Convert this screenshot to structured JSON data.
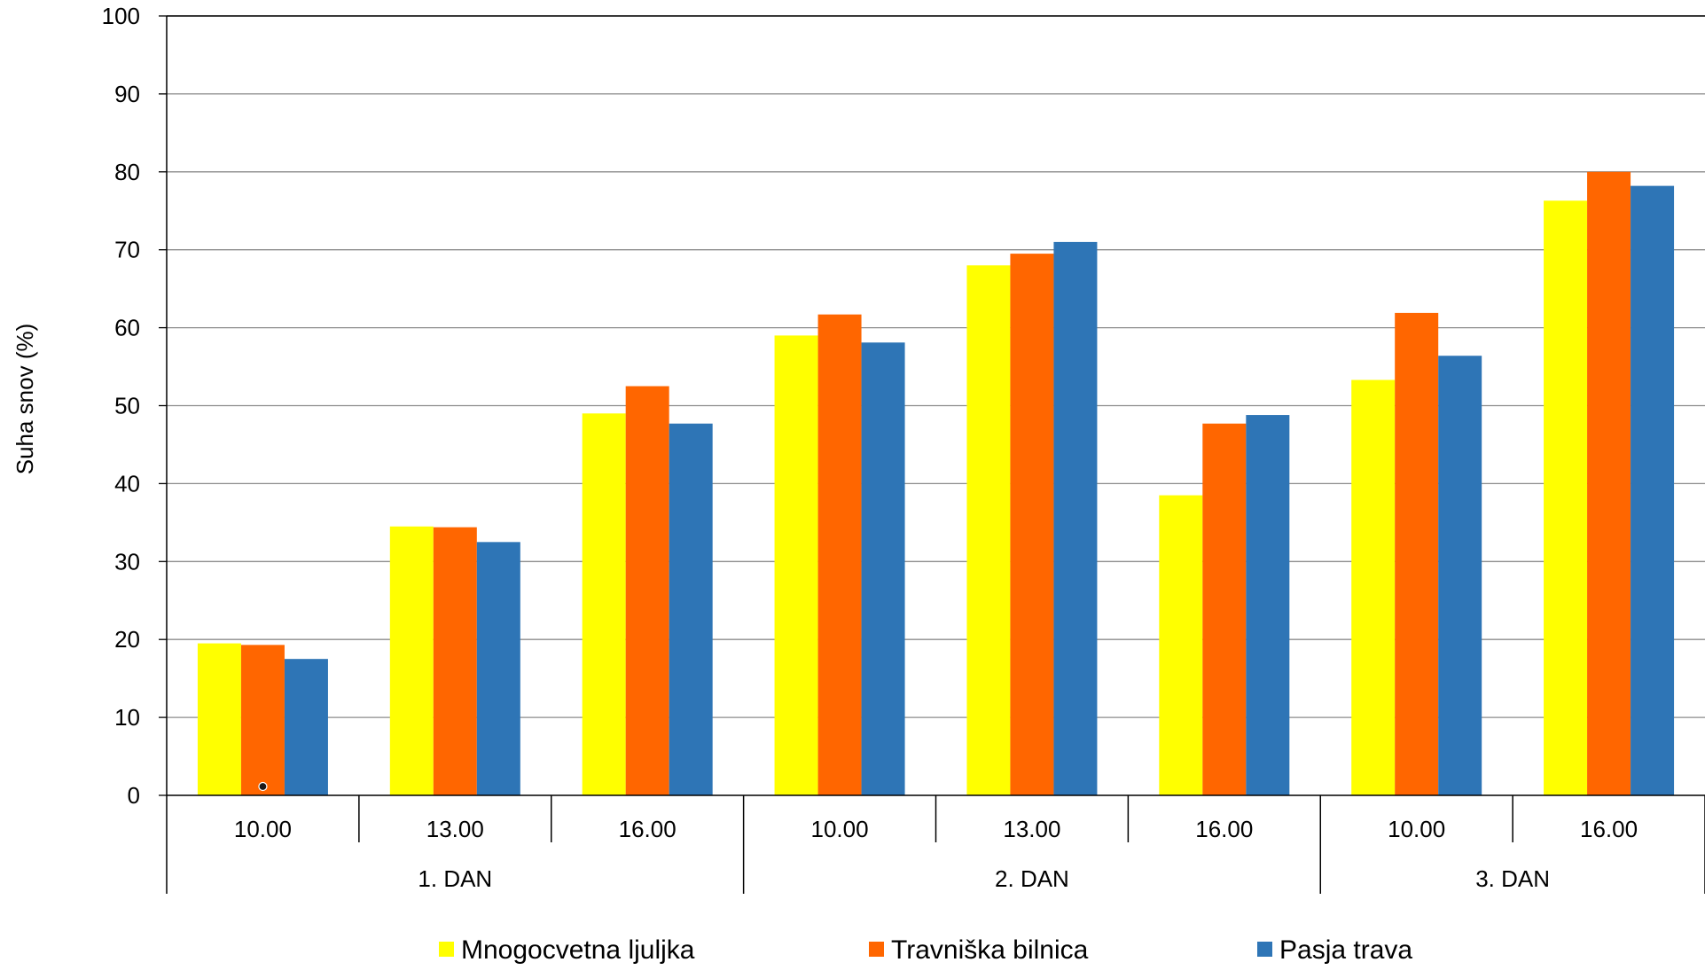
{
  "chart_data": {
    "type": "bar",
    "title": "",
    "xlabel": "",
    "ylabel": "Suha snov (%)",
    "ylim": [
      0,
      100
    ],
    "yticks": [
      "0",
      "10",
      "20",
      "30",
      "40",
      "50",
      "60",
      "70",
      "80",
      "90",
      "100"
    ],
    "grid": true,
    "legend_position": "bottom",
    "groups": [
      {
        "label": "1. DAN",
        "categories": [
          "10.00",
          "13.00",
          "16.00"
        ]
      },
      {
        "label": "2. DAN",
        "categories": [
          "10.00",
          "13.00",
          "16.00"
        ]
      },
      {
        "label": "3. DAN",
        "categories": [
          "10.00",
          "16.00"
        ]
      }
    ],
    "categories": [
      "10.00",
      "13.00",
      "16.00",
      "10.00",
      "13.00",
      "16.00",
      "10.00",
      "16.00"
    ],
    "series": [
      {
        "name": "Mnogocvetna ljuljka",
        "color": "#FFFF00",
        "values": [
          19.5,
          34.5,
          49.0,
          59.0,
          68.0,
          38.5,
          53.3,
          76.3
        ]
      },
      {
        "name": "Travniška bilnica",
        "color": "#FF6600",
        "values": [
          19.3,
          34.4,
          52.5,
          61.7,
          69.5,
          47.7,
          61.9,
          80.0
        ]
      },
      {
        "name": "Pasja trava",
        "color": "#2E75B6",
        "values": [
          17.5,
          32.5,
          47.7,
          58.1,
          71.0,
          48.8,
          56.4,
          78.2
        ]
      }
    ]
  }
}
